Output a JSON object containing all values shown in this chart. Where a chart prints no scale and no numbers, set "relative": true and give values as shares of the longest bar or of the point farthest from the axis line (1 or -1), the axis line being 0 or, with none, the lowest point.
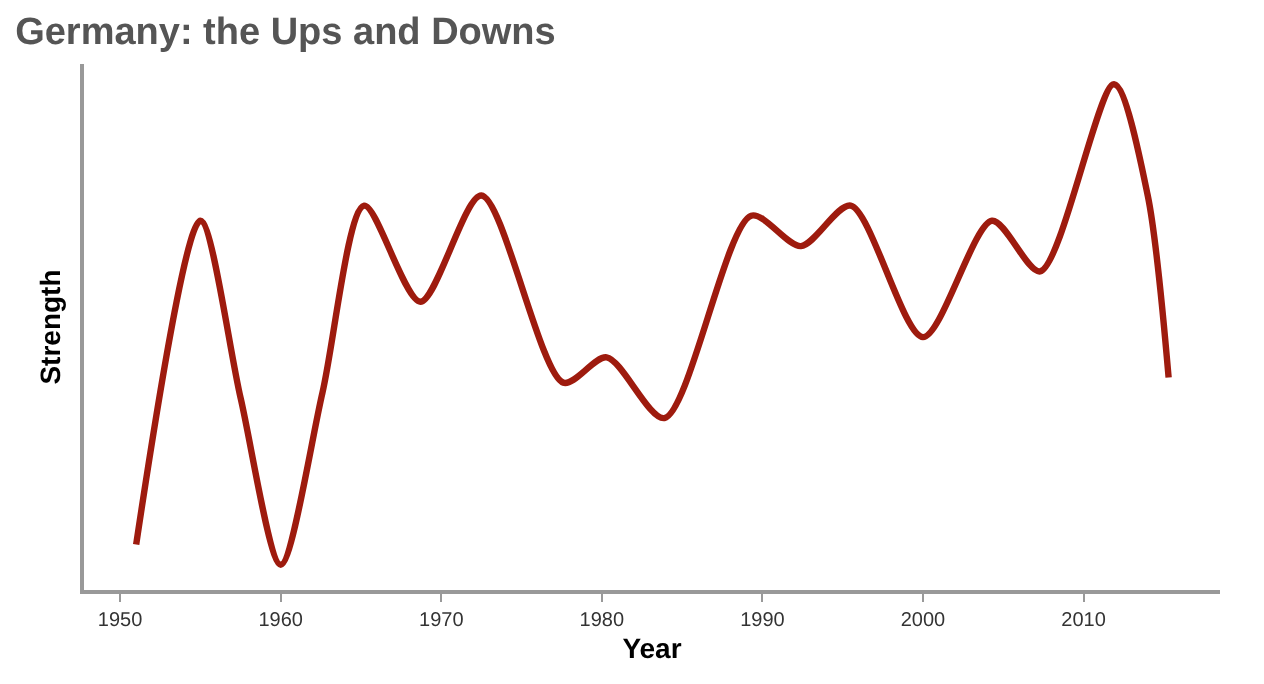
{
  "chart_data": {
    "type": "line",
    "title": "Germany: the Ups and Downs",
    "xlabel": "Year",
    "ylabel": "Strength",
    "relative": true,
    "x": [
      1951,
      1955,
      1957.5,
      1960,
      1962.6,
      1965.2,
      1968.7,
      1972.5,
      1977.6,
      1980.3,
      1983.9,
      1989.3,
      1992.4,
      1995.5,
      2000,
      2004.3,
      2007.3,
      2011.9,
      2014,
      2015.3
    ],
    "series": [
      {
        "color": "#9e1b0e",
        "values": [
          0.09,
          0.73,
          0.38,
          0.05,
          0.39,
          0.76,
          0.57,
          0.78,
          0.41,
          0.46,
          0.34,
          0.74,
          0.68,
          0.76,
          0.5,
          0.73,
          0.63,
          1.0,
          0.78,
          0.42
        ]
      }
    ],
    "xlim": [
      1947.75,
      2018.5
    ],
    "xticks": [
      1950,
      1960,
      1970,
      1980,
      1990,
      2000,
      2010
    ],
    "marker": "none",
    "line_style": "solid"
  }
}
